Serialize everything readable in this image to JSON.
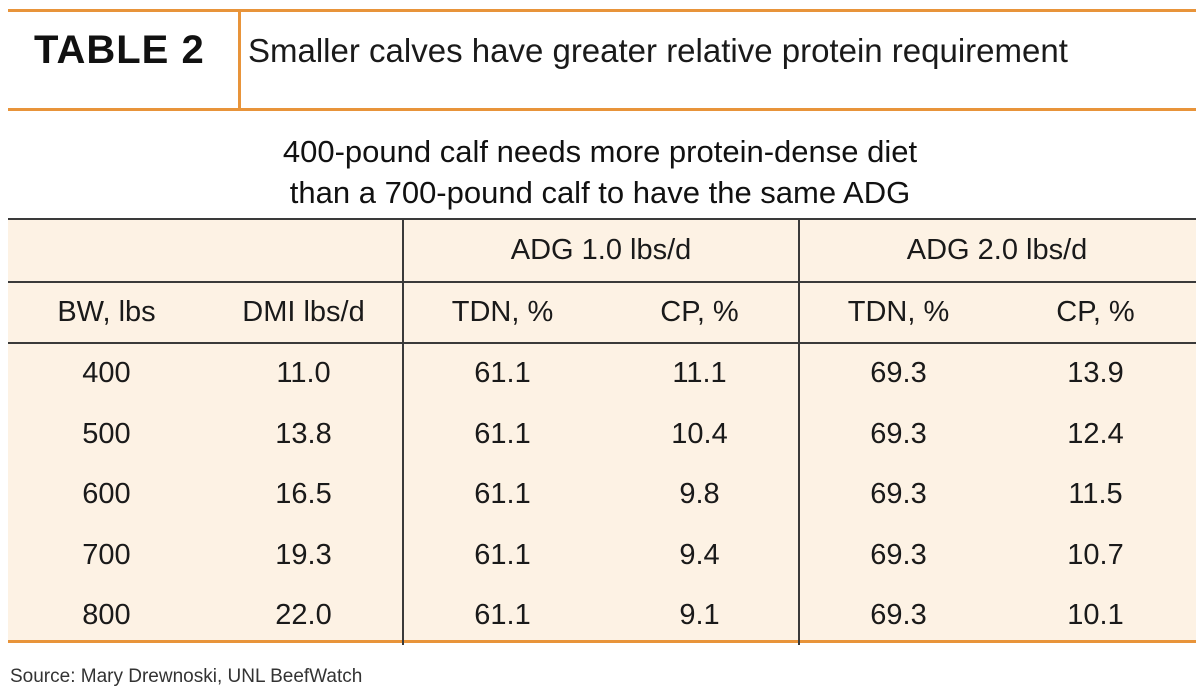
{
  "header": {
    "table_label": "TABLE 2",
    "title": "Smaller calves have greater relative protein requirement"
  },
  "subtitle": {
    "line1": "400-pound calf needs more protein-dense diet",
    "line2": "than a 700-pound calf to have the same ADG"
  },
  "table": {
    "groups": [
      "ADG 1.0 lbs/d",
      "ADG 2.0 lbs/d"
    ],
    "columns": [
      "BW, lbs",
      "DMI lbs/d",
      "TDN, %",
      "CP, %",
      "TDN, %",
      "CP, %"
    ],
    "rows": [
      [
        "400",
        "11.0",
        "61.1",
        "11.1",
        "69.3",
        "13.9"
      ],
      [
        "500",
        "13.8",
        "61.1",
        "10.4",
        "69.3",
        "12.4"
      ],
      [
        "600",
        "16.5",
        "61.1",
        "9.8",
        "69.3",
        "11.5"
      ],
      [
        "700",
        "19.3",
        "61.1",
        "9.4",
        "69.3",
        "10.7"
      ],
      [
        "800",
        "22.0",
        "61.1",
        "9.1",
        "69.3",
        "10.1"
      ]
    ]
  },
  "source": "Source: Mary Drewnoski, UNL BeefWatch",
  "colors": {
    "accent": "#e8943a",
    "table_bg": "#fdf2e4",
    "rule": "#3a3a3a"
  }
}
